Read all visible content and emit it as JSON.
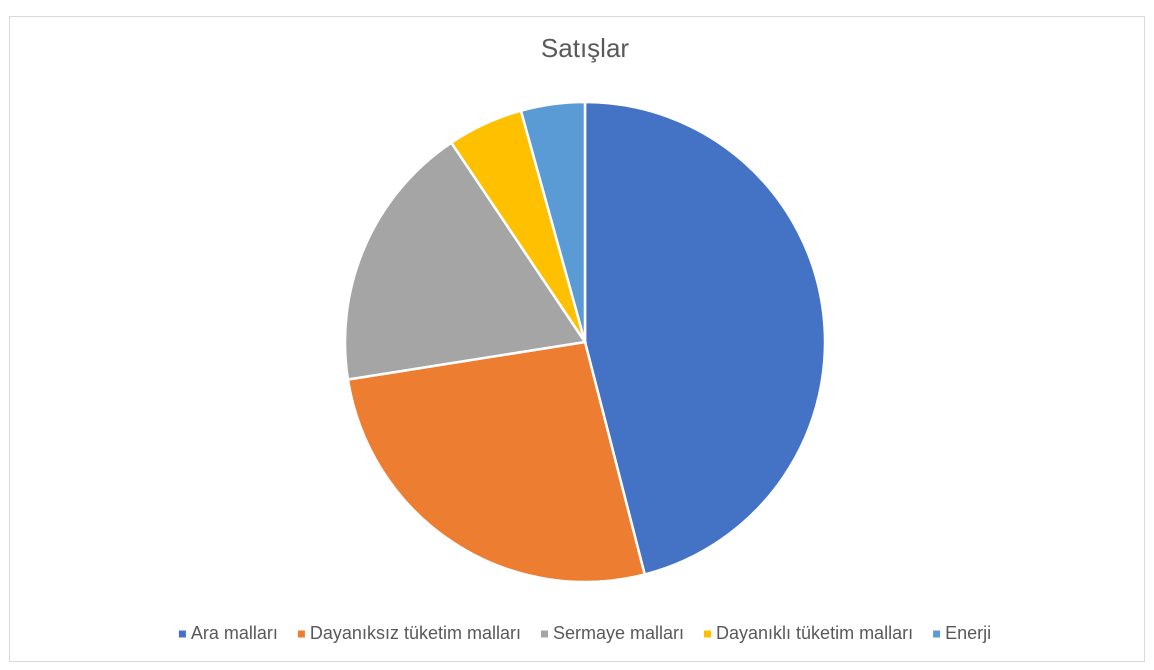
{
  "chart_data": {
    "type": "pie",
    "title": "Satışlar",
    "categories": [
      "Ara malları",
      "Dayanıksız tüketim malları",
      "Sermaye malları",
      "Dayanıklı tüketim malları",
      "Enerji"
    ],
    "values": [
      46,
      26.5,
      18.1,
      5.1,
      4.3
    ],
    "colors": [
      "#4472c4",
      "#ed7d31",
      "#a5a5a5",
      "#ffc000",
      "#5b9bd5"
    ],
    "legend": "bottom"
  }
}
